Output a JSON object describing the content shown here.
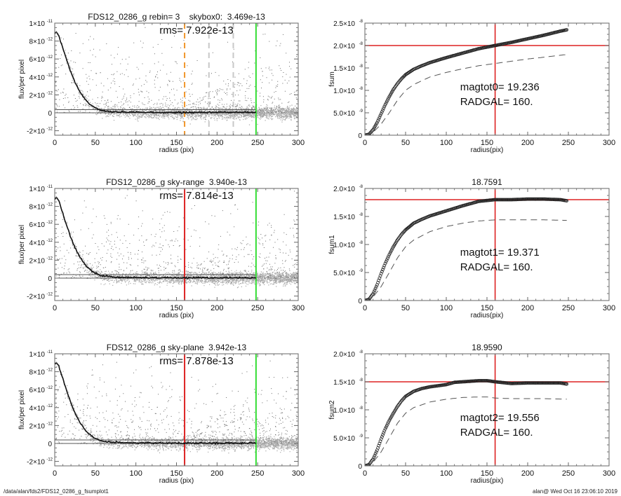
{
  "footer": {
    "path": "/data/alan/fds2/FDS12_0286_g_fsumplot1",
    "stamp": "alan@  Wed Oct 16 23:06:10 2019"
  },
  "chart_data": [
    {
      "id": "profile0",
      "type": "scatter",
      "title": "FDS12_0286_g rebin= 3    skybox0:  3.469e-13",
      "annotation": "rms= 7.922e-13",
      "xlabel": "radius (pix)",
      "ylabel": "flux/per pixel",
      "xlim": [
        0,
        300
      ],
      "ylim": [
        -2.5e-12,
        1e-11
      ],
      "xticks": [
        0,
        50,
        100,
        150,
        200,
        250,
        300
      ],
      "yticks": [
        {
          "v": -2e-12,
          "label": "-2×10",
          "exp": "-12"
        },
        {
          "v": 0,
          "label": "0",
          "exp": ""
        },
        {
          "v": 2e-12,
          "label": "2×10",
          "exp": "-12"
        },
        {
          "v": 4e-12,
          "label": "4×10",
          "exp": "-12"
        },
        {
          "v": 6e-12,
          "label": "6×10",
          "exp": "-12"
        },
        {
          "v": 8e-12,
          "label": "8×10",
          "exp": "-12"
        },
        {
          "v": 1e-11,
          "label": "1×10",
          "exp": "-11"
        }
      ],
      "sky_lines": [
        0,
        3.469e-13
      ],
      "vlines": [
        {
          "x": 160,
          "color": "#f0962a",
          "style": "dashed"
        },
        {
          "x": 190,
          "color": "#c8c8c8",
          "style": "dashed"
        },
        {
          "x": 220,
          "color": "#c8c8c8",
          "style": "dashed"
        },
        {
          "x": 248,
          "color": "#33dd33",
          "style": "solid"
        }
      ],
      "profile": {
        "r": [
          0,
          2,
          5,
          10,
          15,
          20,
          25,
          30,
          35,
          40,
          45,
          50,
          55,
          60,
          70,
          80,
          100,
          120,
          150,
          180,
          210,
          248
        ],
        "flux": [
          8.8e-12,
          9e-12,
          8.6e-12,
          7.2e-12,
          5.8e-12,
          4.5e-12,
          3.4e-12,
          2.5e-12,
          1.8e-12,
          1.25e-12,
          8.5e-13,
          5.5e-13,
          3.5e-13,
          2.2e-13,
          1.5e-13,
          1e-13,
          7e-14,
          5e-14,
          3e-14,
          4e-14,
          5e-14,
          5e-14
        ]
      }
    },
    {
      "id": "fsum0",
      "type": "line",
      "title": "",
      "annotation_lines": [
        "magtot0=  19.236",
        "RADGAL=    160."
      ],
      "xlabel": "radius(pix)",
      "ylabel": "fsum",
      "xlim": [
        0,
        300
      ],
      "ylim": [
        0,
        2.5e-08
      ],
      "xticks": [
        0,
        50,
        100,
        150,
        200,
        250,
        300
      ],
      "yticks": [
        {
          "v": 0,
          "label": "0",
          "exp": ""
        },
        {
          "v": 5e-09,
          "label": "5.0×10",
          "exp": "-9"
        },
        {
          "v": 1e-08,
          "label": "1.0×10",
          "exp": "-8"
        },
        {
          "v": 1.5e-08,
          "label": "1.5×10",
          "exp": "-8"
        },
        {
          "v": 2e-08,
          "label": "2.0×10",
          "exp": "-8"
        },
        {
          "v": 2.5e-08,
          "label": "2.5×10",
          "exp": "-8"
        }
      ],
      "hline": 2e-08,
      "vline": 160,
      "series": [
        {
          "name": "fsum",
          "style": "circles",
          "x": [
            0,
            5,
            10,
            15,
            20,
            25,
            30,
            35,
            40,
            45,
            50,
            60,
            70,
            80,
            100,
            120,
            140,
            160,
            180,
            200,
            220,
            240,
            248
          ],
          "y": [
            0,
            2e-10,
            1.2e-09,
            2.8e-09,
            4.8e-09,
            6.8e-09,
            8.6e-09,
            1.02e-08,
            1.15e-08,
            1.26e-08,
            1.35e-08,
            1.47e-08,
            1.55e-08,
            1.62e-08,
            1.73e-08,
            1.83e-08,
            1.93e-08,
            2e-08,
            2.07e-08,
            2.15e-08,
            2.23e-08,
            2.32e-08,
            2.35e-08
          ]
        },
        {
          "name": "fsum-sky",
          "style": "dashed",
          "x": [
            0,
            10,
            20,
            30,
            40,
            50,
            60,
            80,
            100,
            120,
            140,
            160,
            180,
            200,
            220,
            248
          ],
          "y": [
            0,
            6e-10,
            2.5e-09,
            5e-09,
            7.8e-09,
            1e-08,
            1.13e-08,
            1.3e-08,
            1.4e-08,
            1.48e-08,
            1.55e-08,
            1.6e-08,
            1.65e-08,
            1.7e-08,
            1.74e-08,
            1.8e-08
          ]
        }
      ]
    },
    {
      "id": "profile1",
      "type": "scatter",
      "title": "FDS12_0286_g sky-range  3.940e-13",
      "annotation": "rms= 7.814e-13",
      "xlabel": "radius (pix)",
      "ylabel": "flux/per pixel",
      "xlim": [
        0,
        300
      ],
      "ylim": [
        -2.5e-12,
        1e-11
      ],
      "xticks": [
        0,
        50,
        100,
        150,
        200,
        250,
        300
      ],
      "yticks": [
        {
          "v": -2e-12,
          "label": "-2×10",
          "exp": "-12"
        },
        {
          "v": 0,
          "label": "0",
          "exp": ""
        },
        {
          "v": 2e-12,
          "label": "2×10",
          "exp": "-12"
        },
        {
          "v": 4e-12,
          "label": "4×10",
          "exp": "-12"
        },
        {
          "v": 6e-12,
          "label": "6×10",
          "exp": "-12"
        },
        {
          "v": 8e-12,
          "label": "8×10",
          "exp": "-12"
        },
        {
          "v": 1e-11,
          "label": "1×10",
          "exp": "-11"
        }
      ],
      "sky_lines": [
        0,
        3.94e-13
      ],
      "vlines": [
        {
          "x": 160,
          "color": "#dd2222",
          "style": "solid"
        },
        {
          "x": 248,
          "color": "#33dd33",
          "style": "solid"
        }
      ],
      "profile": {
        "r": [
          0,
          2,
          5,
          10,
          15,
          20,
          25,
          30,
          35,
          40,
          45,
          50,
          55,
          60,
          70,
          80,
          100,
          120,
          150,
          180,
          210,
          248
        ],
        "flux": [
          8.8e-12,
          9e-12,
          8.6e-12,
          7.2e-12,
          5.8e-12,
          4.5e-12,
          3.4e-12,
          2.5e-12,
          1.8e-12,
          1.25e-12,
          8.5e-13,
          5.5e-13,
          3.5e-13,
          2.2e-13,
          1.5e-13,
          1e-13,
          7e-14,
          5e-14,
          3e-14,
          4e-14,
          5e-14,
          5e-14
        ]
      }
    },
    {
      "id": "fsum1",
      "type": "line",
      "title": "18.7591",
      "annotation_lines": [
        "magtot1=  19.371",
        "RADGAL=    160."
      ],
      "xlabel": "radius(pix)",
      "ylabel": "fsum1",
      "xlim": [
        0,
        300
      ],
      "ylim": [
        0,
        2e-08
      ],
      "xticks": [
        0,
        50,
        100,
        150,
        200,
        250,
        300
      ],
      "yticks": [
        {
          "v": 0,
          "label": "0",
          "exp": ""
        },
        {
          "v": 5e-09,
          "label": "5.0×10",
          "exp": "-9"
        },
        {
          "v": 1e-08,
          "label": "1.0×10",
          "exp": "-8"
        },
        {
          "v": 1.5e-08,
          "label": "1.5×10",
          "exp": "-8"
        },
        {
          "v": 2e-08,
          "label": "2.0×10",
          "exp": "-8"
        }
      ],
      "hline": 1.8e-08,
      "vline": 160,
      "series": [
        {
          "name": "fsum1",
          "style": "circles",
          "x": [
            0,
            5,
            10,
            15,
            20,
            25,
            30,
            35,
            40,
            45,
            50,
            60,
            70,
            80,
            100,
            120,
            140,
            160,
            180,
            200,
            220,
            240,
            248
          ],
          "y": [
            0,
            2e-10,
            1.2e-09,
            2.8e-09,
            4.8e-09,
            6.6e-09,
            8.2e-09,
            9.6e-09,
            1.08e-08,
            1.18e-08,
            1.26e-08,
            1.38e-08,
            1.45e-08,
            1.51e-08,
            1.6e-08,
            1.69e-08,
            1.77e-08,
            1.8e-08,
            1.8e-08,
            1.81e-08,
            1.81e-08,
            1.8e-08,
            1.78e-08
          ]
        },
        {
          "name": "fsum1-sky",
          "style": "dashed",
          "x": [
            0,
            10,
            20,
            30,
            40,
            50,
            60,
            80,
            100,
            120,
            140,
            160,
            180,
            200,
            220,
            248
          ],
          "y": [
            0,
            6e-10,
            2.5e-09,
            5e-09,
            7.6e-09,
            9.6e-09,
            1.08e-08,
            1.23e-08,
            1.32e-08,
            1.38e-08,
            1.42e-08,
            1.44e-08,
            1.44e-08,
            1.44e-08,
            1.44e-08,
            1.43e-08
          ]
        }
      ]
    },
    {
      "id": "profile2",
      "type": "scatter",
      "title": "FDS12_0286_g sky-plane  3.942e-13",
      "annotation": "rms= 7.878e-13",
      "xlabel": "radius (pix)",
      "ylabel": "flux/per pixel",
      "xlim": [
        0,
        300
      ],
      "ylim": [
        -2.5e-12,
        1e-11
      ],
      "xticks": [
        0,
        50,
        100,
        150,
        200,
        250,
        300
      ],
      "yticks": [
        {
          "v": -2e-12,
          "label": "-2×10",
          "exp": "-12"
        },
        {
          "v": 0,
          "label": "0",
          "exp": ""
        },
        {
          "v": 2e-12,
          "label": "2×10",
          "exp": "-12"
        },
        {
          "v": 4e-12,
          "label": "4×10",
          "exp": "-12"
        },
        {
          "v": 6e-12,
          "label": "6×10",
          "exp": "-12"
        },
        {
          "v": 8e-12,
          "label": "8×10",
          "exp": "-12"
        },
        {
          "v": 1e-11,
          "label": "1×10",
          "exp": "-11"
        }
      ],
      "sky_lines": [
        0,
        3.942e-13
      ],
      "vlines": [
        {
          "x": 160,
          "color": "#dd2222",
          "style": "solid"
        },
        {
          "x": 248,
          "color": "#33dd33",
          "style": "solid"
        }
      ],
      "profile": {
        "r": [
          0,
          2,
          5,
          10,
          15,
          20,
          25,
          30,
          35,
          40,
          45,
          50,
          55,
          60,
          70,
          80,
          100,
          120,
          150,
          180,
          210,
          248
        ],
        "flux": [
          8.8e-12,
          9e-12,
          8.6e-12,
          7.2e-12,
          5.8e-12,
          4.5e-12,
          3.4e-12,
          2.5e-12,
          1.8e-12,
          1.25e-12,
          8.5e-13,
          5.5e-13,
          3.5e-13,
          2.2e-13,
          1.5e-13,
          1e-13,
          7e-14,
          5e-14,
          3e-14,
          4e-14,
          5e-14,
          5e-14
        ]
      }
    },
    {
      "id": "fsum2",
      "type": "line",
      "title": "18.9590",
      "annotation_lines": [
        "magtot2=  19.556",
        "RADGAL=    160."
      ],
      "xlabel": "radius(pix)",
      "ylabel": "fsum2",
      "xlim": [
        0,
        300
      ],
      "ylim": [
        0,
        2e-08
      ],
      "xticks": [
        0,
        50,
        100,
        150,
        200,
        250,
        300
      ],
      "yticks": [
        {
          "v": 0,
          "label": "0",
          "exp": ""
        },
        {
          "v": 5e-09,
          "label": "5.0×10",
          "exp": "-9"
        },
        {
          "v": 1e-08,
          "label": "1.0×10",
          "exp": "-8"
        },
        {
          "v": 1.5e-08,
          "label": "1.5×10",
          "exp": "-8"
        },
        {
          "v": 2e-08,
          "label": "2.0×10",
          "exp": "-8"
        }
      ],
      "hline": 1.5e-08,
      "vline": 160,
      "series": [
        {
          "name": "fsum2",
          "style": "circles",
          "x": [
            0,
            5,
            10,
            15,
            20,
            25,
            30,
            35,
            40,
            45,
            50,
            60,
            70,
            80,
            100,
            110,
            120,
            140,
            150,
            160,
            180,
            200,
            220,
            240,
            248
          ],
          "y": [
            0,
            2e-10,
            1.2e-09,
            2.8e-09,
            4.8e-09,
            6.6e-09,
            8.1e-09,
            9.4e-09,
            1.06e-08,
            1.16e-08,
            1.24e-08,
            1.33e-08,
            1.38e-08,
            1.41e-08,
            1.45e-08,
            1.49e-08,
            1.5e-08,
            1.52e-08,
            1.52e-08,
            1.5e-08,
            1.47e-08,
            1.48e-08,
            1.48e-08,
            1.48e-08,
            1.46e-08
          ]
        },
        {
          "name": "fsum2-sky",
          "style": "dashed",
          "x": [
            0,
            10,
            20,
            30,
            40,
            50,
            60,
            80,
            100,
            120,
            140,
            150,
            160,
            180,
            200,
            220,
            248
          ],
          "y": [
            0,
            6e-10,
            2.5e-09,
            5e-09,
            7.6e-09,
            9.4e-09,
            1.04e-08,
            1.14e-08,
            1.19e-08,
            1.22e-08,
            1.23e-08,
            1.23e-08,
            1.21e-08,
            1.2e-08,
            1.2e-08,
            1.2e-08,
            1.19e-08
          ]
        }
      ]
    }
  ]
}
